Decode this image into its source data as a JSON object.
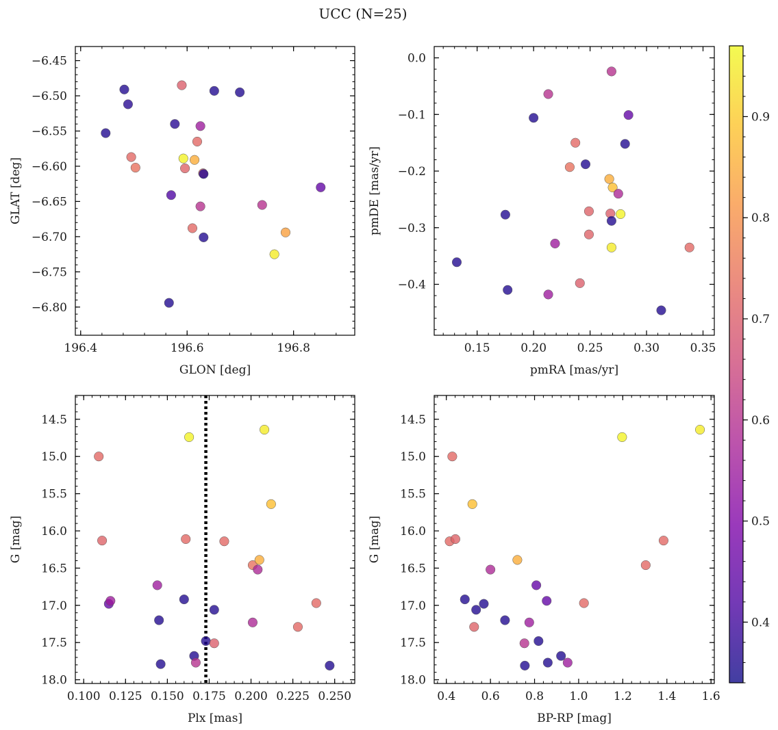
{
  "figure": {
    "title": "UCC (N=25)"
  },
  "colorbar": {
    "colormap": "plasma",
    "range": [
      0.34,
      0.97
    ],
    "ticks": [
      0.4,
      0.5,
      0.6,
      0.7,
      0.8,
      0.9
    ]
  },
  "chart_data": [
    {
      "type": "scatter",
      "xlabel": "GLON [deg]",
      "ylabel": "GLAT [deg]",
      "xlim": [
        196.39,
        196.915
      ],
      "ylim": [
        -6.84,
        -6.43
      ],
      "x_ticks": [
        196.4,
        196.6,
        196.8
      ],
      "y_ticks": [
        -6.45,
        -6.5,
        -6.55,
        -6.6,
        -6.65,
        -6.7,
        -6.75,
        -6.8
      ],
      "y_inverted": false,
      "points": [
        {
          "x": 196.447,
          "y": -6.553,
          "c": 0.36
        },
        {
          "x": 196.482,
          "y": -6.491,
          "c": 0.36
        },
        {
          "x": 196.489,
          "y": -6.512,
          "c": 0.37
        },
        {
          "x": 196.495,
          "y": -6.587,
          "c": 0.72
        },
        {
          "x": 196.503,
          "y": -6.602,
          "c": 0.74
        },
        {
          "x": 196.566,
          "y": -6.794,
          "c": 0.36
        },
        {
          "x": 196.57,
          "y": -6.641,
          "c": 0.42
        },
        {
          "x": 196.577,
          "y": -6.54,
          "c": 0.37
        },
        {
          "x": 196.59,
          "y": -6.485,
          "c": 0.7
        },
        {
          "x": 196.593,
          "y": -6.589,
          "c": 0.96
        },
        {
          "x": 196.596,
          "y": -6.603,
          "c": 0.71
        },
        {
          "x": 196.61,
          "y": -6.688,
          "c": 0.72
        },
        {
          "x": 196.614,
          "y": -6.591,
          "c": 0.85
        },
        {
          "x": 196.619,
          "y": -6.565,
          "c": 0.72
        },
        {
          "x": 196.625,
          "y": -6.543,
          "c": 0.55
        },
        {
          "x": 196.625,
          "y": -6.657,
          "c": 0.6
        },
        {
          "x": 196.63,
          "y": -6.61,
          "c": 0.7
        },
        {
          "x": 196.631,
          "y": -6.611,
          "c": 0.36
        },
        {
          "x": 196.631,
          "y": -6.701,
          "c": 0.36
        },
        {
          "x": 196.651,
          "y": -6.493,
          "c": 0.36
        },
        {
          "x": 196.699,
          "y": -6.495,
          "c": 0.36
        },
        {
          "x": 196.741,
          "y": -6.655,
          "c": 0.6
        },
        {
          "x": 196.764,
          "y": -6.725,
          "c": 0.95
        },
        {
          "x": 196.785,
          "y": -6.694,
          "c": 0.83
        },
        {
          "x": 196.851,
          "y": -6.63,
          "c": 0.45
        }
      ]
    },
    {
      "type": "scatter",
      "xlabel": "pmRA [mas/yr]",
      "ylabel": "pmDE [mas/yr]",
      "xlim": [
        0.112,
        0.36
      ],
      "ylim": [
        -0.49,
        0.02
      ],
      "x_ticks": [
        0.15,
        0.2,
        0.25,
        0.3,
        0.35
      ],
      "y_ticks": [
        0.0,
        -0.1,
        -0.2,
        -0.3,
        -0.4
      ],
      "y_inverted": false,
      "points": [
        {
          "x": 0.132,
          "y": -0.361,
          "c": 0.36
        },
        {
          "x": 0.175,
          "y": -0.277,
          "c": 0.36
        },
        {
          "x": 0.177,
          "y": -0.41,
          "c": 0.36
        },
        {
          "x": 0.2,
          "y": -0.106,
          "c": 0.36
        },
        {
          "x": 0.213,
          "y": -0.064,
          "c": 0.6
        },
        {
          "x": 0.213,
          "y": -0.418,
          "c": 0.55
        },
        {
          "x": 0.219,
          "y": -0.328,
          "c": 0.55
        },
        {
          "x": 0.232,
          "y": -0.193,
          "c": 0.74
        },
        {
          "x": 0.237,
          "y": -0.15,
          "c": 0.72
        },
        {
          "x": 0.241,
          "y": -0.398,
          "c": 0.7
        },
        {
          "x": 0.246,
          "y": -0.188,
          "c": 0.36
        },
        {
          "x": 0.249,
          "y": -0.271,
          "c": 0.71
        },
        {
          "x": 0.249,
          "y": -0.312,
          "c": 0.71
        },
        {
          "x": 0.267,
          "y": -0.214,
          "c": 0.85
        },
        {
          "x": 0.268,
          "y": -0.275,
          "c": 0.7
        },
        {
          "x": 0.269,
          "y": -0.024,
          "c": 0.6
        },
        {
          "x": 0.269,
          "y": -0.288,
          "c": 0.36
        },
        {
          "x": 0.269,
          "y": -0.335,
          "c": 0.95
        },
        {
          "x": 0.27,
          "y": -0.229,
          "c": 0.88
        },
        {
          "x": 0.275,
          "y": -0.24,
          "c": 0.58
        },
        {
          "x": 0.277,
          "y": -0.276,
          "c": 0.96
        },
        {
          "x": 0.281,
          "y": -0.152,
          "c": 0.36
        },
        {
          "x": 0.284,
          "y": -0.101,
          "c": 0.45
        },
        {
          "x": 0.313,
          "y": -0.446,
          "c": 0.36
        },
        {
          "x": 0.338,
          "y": -0.335,
          "c": 0.72
        }
      ]
    },
    {
      "type": "scatter",
      "xlabel": "Plx [mas]",
      "ylabel": "G [mag]",
      "xlim": [
        0.095,
        0.262
      ],
      "ylim": [
        14.18,
        18.05
      ],
      "x_ticks": [
        0.1,
        0.125,
        0.15,
        0.175,
        0.2,
        0.225,
        0.25
      ],
      "y_ticks": [
        14.5,
        15.0,
        15.5,
        16.0,
        16.5,
        17.0,
        17.5,
        18.0
      ],
      "y_inverted": true,
      "vline": {
        "x": 0.173,
        "style": "dotted"
      },
      "points": [
        {
          "x": 0.109,
          "y": 15.0,
          "c": 0.72
        },
        {
          "x": 0.111,
          "y": 16.13,
          "c": 0.71
        },
        {
          "x": 0.115,
          "y": 16.98,
          "c": 0.45
        },
        {
          "x": 0.116,
          "y": 16.94,
          "c": 0.55
        },
        {
          "x": 0.144,
          "y": 16.73,
          "c": 0.55
        },
        {
          "x": 0.145,
          "y": 17.2,
          "c": 0.36
        },
        {
          "x": 0.146,
          "y": 17.79,
          "c": 0.36
        },
        {
          "x": 0.16,
          "y": 16.92,
          "c": 0.36
        },
        {
          "x": 0.161,
          "y": 16.11,
          "c": 0.72
        },
        {
          "x": 0.163,
          "y": 14.74,
          "c": 0.96
        },
        {
          "x": 0.166,
          "y": 17.68,
          "c": 0.36
        },
        {
          "x": 0.167,
          "y": 17.77,
          "c": 0.6
        },
        {
          "x": 0.173,
          "y": 17.48,
          "c": 0.36
        },
        {
          "x": 0.178,
          "y": 17.06,
          "c": 0.36
        },
        {
          "x": 0.178,
          "y": 17.51,
          "c": 0.7
        },
        {
          "x": 0.184,
          "y": 16.14,
          "c": 0.72
        },
        {
          "x": 0.201,
          "y": 16.46,
          "c": 0.74
        },
        {
          "x": 0.201,
          "y": 17.23,
          "c": 0.58
        },
        {
          "x": 0.204,
          "y": 16.52,
          "c": 0.58
        },
        {
          "x": 0.205,
          "y": 16.39,
          "c": 0.85
        },
        {
          "x": 0.208,
          "y": 14.64,
          "c": 0.95
        },
        {
          "x": 0.212,
          "y": 15.64,
          "c": 0.88
        },
        {
          "x": 0.228,
          "y": 17.29,
          "c": 0.72
        },
        {
          "x": 0.239,
          "y": 16.97,
          "c": 0.72
        },
        {
          "x": 0.247,
          "y": 17.81,
          "c": 0.36
        }
      ]
    },
    {
      "type": "scatter",
      "xlabel": "BP-RP [mag]",
      "ylabel": "G [mag]",
      "xlim": [
        0.345,
        1.615
      ],
      "ylim": [
        14.18,
        18.05
      ],
      "x_ticks": [
        0.4,
        0.6,
        0.8,
        1.0,
        1.2,
        1.4,
        1.6
      ],
      "y_ticks": [
        14.5,
        15.0,
        15.5,
        16.0,
        16.5,
        17.0,
        17.5,
        18.0
      ],
      "y_inverted": true,
      "points": [
        {
          "x": 0.415,
          "y": 16.14,
          "c": 0.72
        },
        {
          "x": 0.427,
          "y": 15.0,
          "c": 0.72
        },
        {
          "x": 0.441,
          "y": 16.11,
          "c": 0.71
        },
        {
          "x": 0.484,
          "y": 16.92,
          "c": 0.36
        },
        {
          "x": 0.518,
          "y": 15.64,
          "c": 0.88
        },
        {
          "x": 0.526,
          "y": 17.29,
          "c": 0.71
        },
        {
          "x": 0.535,
          "y": 17.06,
          "c": 0.36
        },
        {
          "x": 0.57,
          "y": 16.98,
          "c": 0.36
        },
        {
          "x": 0.6,
          "y": 16.52,
          "c": 0.58
        },
        {
          "x": 0.666,
          "y": 17.2,
          "c": 0.36
        },
        {
          "x": 0.722,
          "y": 16.39,
          "c": 0.85
        },
        {
          "x": 0.754,
          "y": 17.51,
          "c": 0.6
        },
        {
          "x": 0.756,
          "y": 17.81,
          "c": 0.36
        },
        {
          "x": 0.776,
          "y": 17.23,
          "c": 0.55
        },
        {
          "x": 0.808,
          "y": 16.73,
          "c": 0.45
        },
        {
          "x": 0.818,
          "y": 17.48,
          "c": 0.36
        },
        {
          "x": 0.855,
          "y": 16.94,
          "c": 0.45
        },
        {
          "x": 0.86,
          "y": 17.77,
          "c": 0.36
        },
        {
          "x": 0.92,
          "y": 17.68,
          "c": 0.36
        },
        {
          "x": 0.95,
          "y": 17.77,
          "c": 0.55
        },
        {
          "x": 1.024,
          "y": 16.97,
          "c": 0.72
        },
        {
          "x": 1.197,
          "y": 14.74,
          "c": 0.96
        },
        {
          "x": 1.304,
          "y": 16.46,
          "c": 0.72
        },
        {
          "x": 1.385,
          "y": 16.13,
          "c": 0.72
        },
        {
          "x": 1.55,
          "y": 14.64,
          "c": 0.95
        }
      ]
    }
  ]
}
